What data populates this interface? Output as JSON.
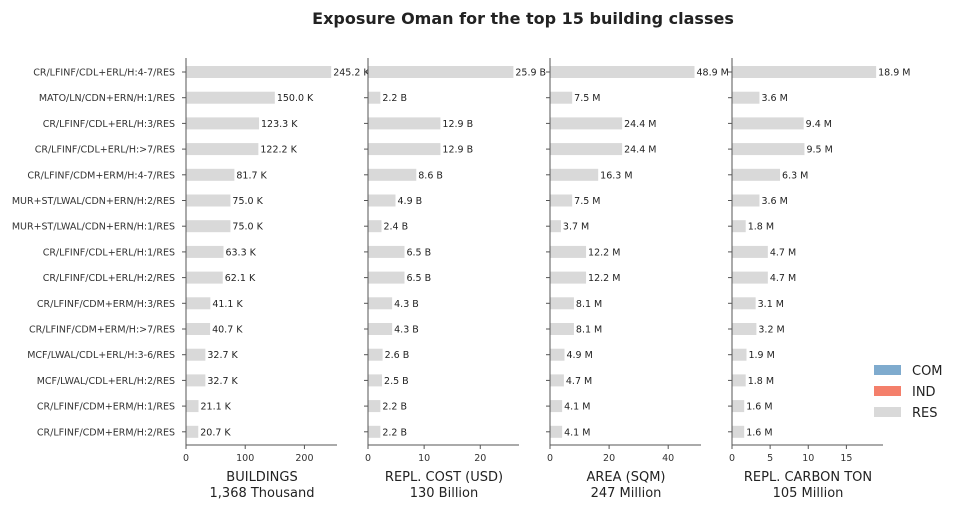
{
  "chart_data": {
    "type": "bar",
    "orientation": "horizontal",
    "title": "Exposure Oman for the top 15 building classes",
    "categories": [
      "CR/LFINF/CDL+ERL/H:4-7/RES",
      "MATO/LN/CDN+ERN/H:1/RES",
      "CR/LFINF/CDL+ERL/H:3/RES",
      "CR/LFINF/CDL+ERL/H:>7/RES",
      "CR/LFINF/CDM+ERM/H:4-7/RES",
      "MUR+ST/LWAL/CDN+ERN/H:2/RES",
      "MUR+ST/LWAL/CDN+ERN/H:1/RES",
      "CR/LFINF/CDL+ERL/H:1/RES",
      "CR/LFINF/CDL+ERL/H:2/RES",
      "CR/LFINF/CDM+ERM/H:3/RES",
      "CR/LFINF/CDM+ERM/H:>7/RES",
      "MCF/LWAL/CDL+ERL/H:3-6/RES",
      "MCF/LWAL/CDL+ERL/H:2/RES",
      "CR/LFINF/CDM+ERM/H:1/RES",
      "CR/LFINF/CDM+ERM/H:2/RES"
    ],
    "panels": [
      {
        "axis_title": "BUILDINGS",
        "axis_subtitle": "1,368 Thousand",
        "xlim": [
          0,
          255
        ],
        "ticks": [
          0,
          100,
          200
        ],
        "values": [
          245.2,
          150.0,
          123.3,
          122.2,
          81.7,
          75.0,
          75.0,
          63.3,
          62.1,
          41.1,
          40.7,
          32.7,
          32.7,
          21.1,
          20.7
        ],
        "labels": [
          "245.2 K",
          "150.0 K",
          "123.3 K",
          "122.2 K",
          "81.7 K",
          "75.0 K",
          "75.0 K",
          "63.3 K",
          "62.1 K",
          "41.1 K",
          "40.7 K",
          "32.7 K",
          "32.7 K",
          "21.1 K",
          "20.7 K"
        ]
      },
      {
        "axis_title": "REPL. COST (USD)",
        "axis_subtitle": "130 Billion",
        "xlim": [
          0,
          26.9
        ],
        "ticks": [
          0,
          10,
          20
        ],
        "values": [
          25.9,
          2.2,
          12.9,
          12.9,
          8.6,
          4.9,
          2.4,
          6.5,
          6.5,
          4.3,
          4.3,
          2.6,
          2.5,
          2.2,
          2.2
        ],
        "labels": [
          "25.9 B",
          "2.2 B",
          "12.9 B",
          "12.9 B",
          "8.6 B",
          "4.9 B",
          "2.4 B",
          "6.5 B",
          "6.5 B",
          "4.3 B",
          "4.3 B",
          "2.6 B",
          "2.5 B",
          "2.2 B",
          "2.2 B"
        ]
      },
      {
        "axis_title": "AREA (SQM)",
        "axis_subtitle": "247 Million",
        "xlim": [
          0,
          51.1
        ],
        "ticks": [
          0,
          20,
          40
        ],
        "values": [
          48.9,
          7.5,
          24.4,
          24.4,
          16.3,
          7.5,
          3.7,
          12.2,
          12.2,
          8.1,
          8.1,
          4.9,
          4.7,
          4.1,
          4.1
        ],
        "labels": [
          "48.9 M",
          "7.5 M",
          "24.4 M",
          "24.4 M",
          "16.3 M",
          "7.5 M",
          "3.7 M",
          "12.2 M",
          "12.2 M",
          "8.1 M",
          "8.1 M",
          "4.9 M",
          "4.7 M",
          "4.1 M",
          "4.1 M"
        ]
      },
      {
        "axis_title": "REPL. CARBON TON",
        "axis_subtitle": "105 Million",
        "xlim": [
          0,
          19.8
        ],
        "ticks": [
          0,
          5,
          10,
          15
        ],
        "values": [
          18.9,
          3.6,
          9.4,
          9.5,
          6.3,
          3.6,
          1.8,
          4.7,
          4.7,
          3.1,
          3.2,
          1.9,
          1.8,
          1.6,
          1.6
        ],
        "labels": [
          "18.9 M",
          "3.6 M",
          "9.4 M",
          "9.5 M",
          "6.3 M",
          "3.6 M",
          "1.8 M",
          "4.7 M",
          "4.7 M",
          "3.1 M",
          "3.2 M",
          "1.9 M",
          "1.8 M",
          "1.6 M",
          "1.6 M"
        ]
      }
    ],
    "legend": {
      "placement": "bottom-right",
      "entries": [
        {
          "name": "COM",
          "color": "#7FABCE"
        },
        {
          "name": "IND",
          "color": "#F47F6B"
        },
        {
          "name": "RES",
          "color": "#D9D9D9"
        }
      ]
    },
    "bar_color": "#D9D9D9",
    "axis_color": "#555555",
    "grid": false
  }
}
